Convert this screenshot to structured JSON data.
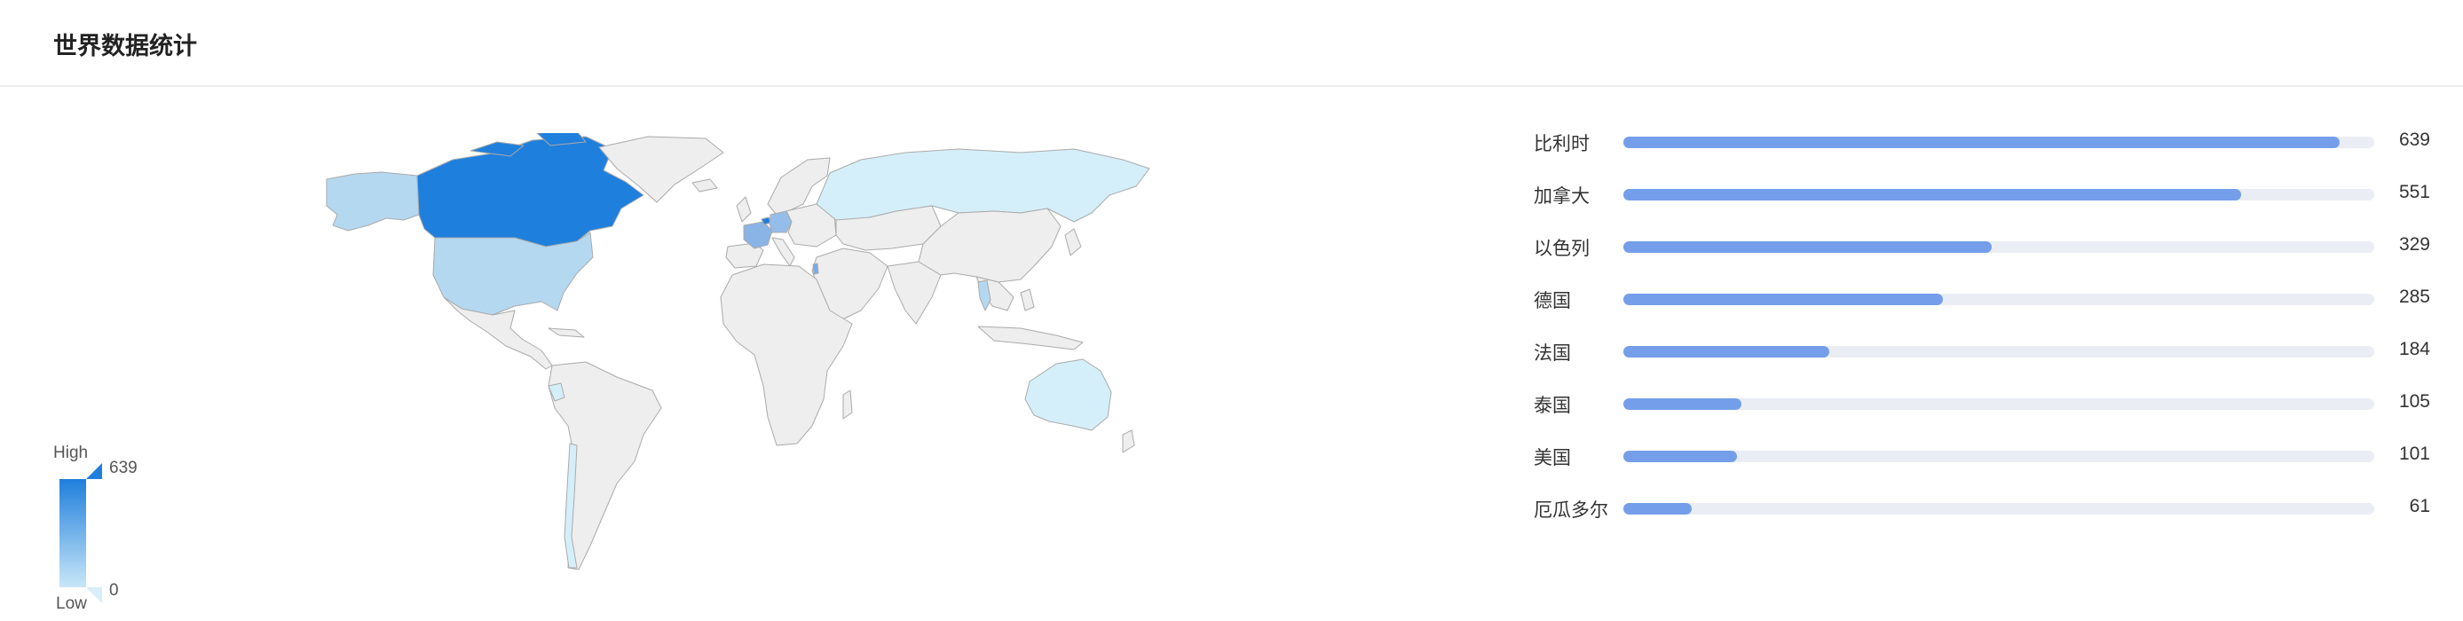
{
  "header": {
    "title": "世界数据统计"
  },
  "visual_map": {
    "high_label": "High",
    "low_label": "Low",
    "max": "639",
    "min": "0"
  },
  "colors": {
    "scale_high": "#1f7fdc",
    "scale_low": "#d4eff9",
    "land_default": "#eeeeee",
    "border": "#aaaaaa",
    "bar_fill": "#749ee9",
    "bar_track": "#eaedf4"
  },
  "chart_data": [
    {
      "type": "map",
      "title": "世界数据统计",
      "value_range": [
        0,
        639
      ],
      "regions": [
        {
          "name": "比利时",
          "value": 639
        },
        {
          "name": "加拿大",
          "value": 551
        },
        {
          "name": "以色列",
          "value": 329
        },
        {
          "name": "德国",
          "value": 285
        },
        {
          "name": "法国",
          "value": 184
        },
        {
          "name": "泰国",
          "value": 105
        },
        {
          "name": "美国",
          "value": 101
        },
        {
          "name": "厄瓜多尔",
          "value": 61
        }
      ]
    },
    {
      "type": "bar",
      "orientation": "horizontal",
      "categories": [
        "比利时",
        "加拿大",
        "以色列",
        "德国",
        "法国",
        "泰国",
        "美国",
        "厄瓜多尔"
      ],
      "values": [
        639,
        551,
        329,
        285,
        184,
        105,
        101,
        61
      ],
      "xlim": [
        0,
        670
      ]
    }
  ]
}
